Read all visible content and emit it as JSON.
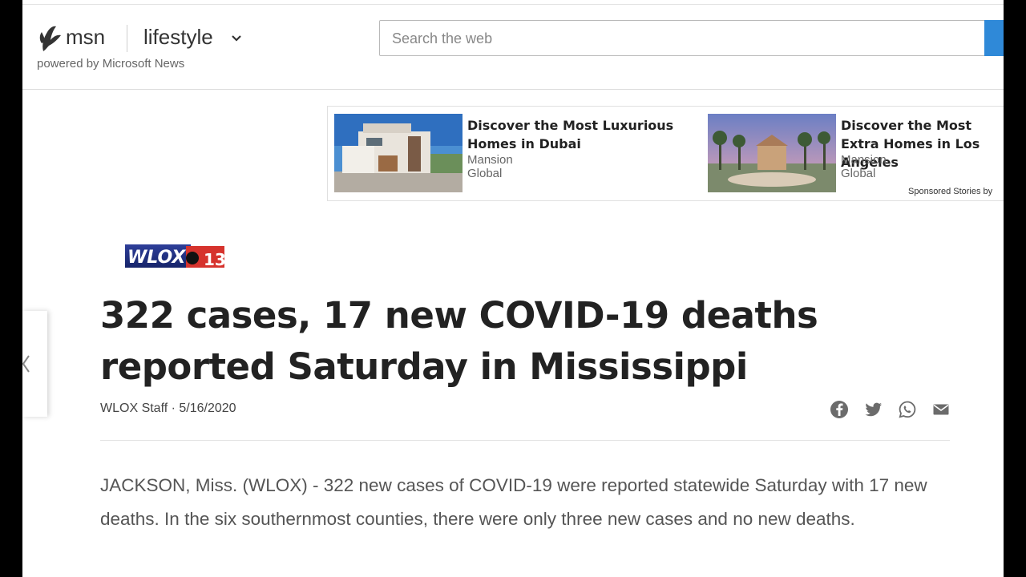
{
  "header": {
    "brand": "msn",
    "section": "lifestyle",
    "powered_by": "powered by Microsoft News",
    "search_placeholder": "Search the web"
  },
  "sponsored": {
    "label": "Sponsored Stories by",
    "items": [
      {
        "title": "Discover the Most Luxurious Homes in Dubai",
        "source": "Mansion Global",
        "image": "dubai-mansion"
      },
      {
        "title": "Discover the Most Extra Homes in Los Angeles",
        "source": "Mansion Global",
        "image": "los-angeles-mansion"
      }
    ]
  },
  "article": {
    "source_logo": "WLOX",
    "source_logo_affiliate": "13",
    "headline": "322 cases, 17 new COVID-19 deaths reported Saturday in Mississippi",
    "byline": "WLOX Staff · 5/16/2020",
    "share_icons": [
      "facebook-icon",
      "twitter-icon",
      "whatsapp-icon",
      "email-icon"
    ],
    "body": "JACKSON, Miss. (WLOX) - 322 new cases of COVID-19 were reported statewide Saturday with 17 new deaths. In the six southernmost counties, there were only three new cases and no new deaths."
  },
  "colors": {
    "accent": "#2f89d8",
    "headline": "#222222",
    "body": "#555555"
  }
}
